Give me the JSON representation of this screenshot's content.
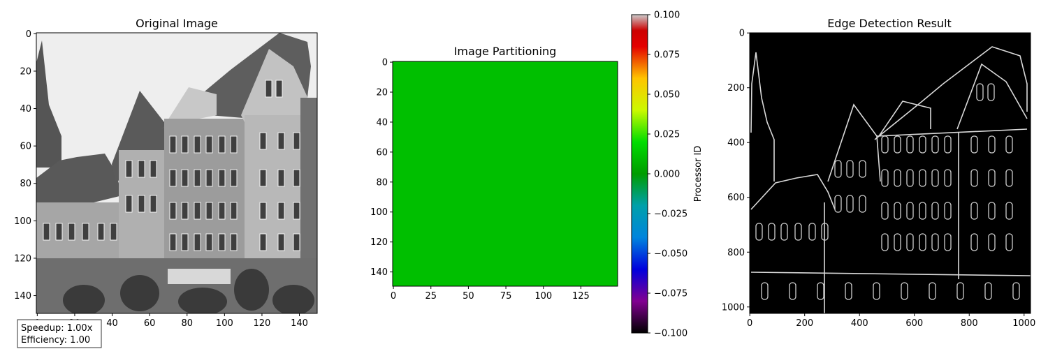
{
  "chart_data": [
    {
      "type": "image",
      "title": "Original Image",
      "content": "grayscale photograph of a street of half-timbered European townhouses with a church spire on the left",
      "xlim": [
        0,
        150
      ],
      "ylim": [
        150,
        0
      ],
      "x_ticks": [
        0,
        20,
        40,
        60,
        80,
        100,
        120,
        140
      ],
      "x_tick_labels": [
        "0",
        "20",
        "40",
        "60",
        "80",
        "100",
        "120",
        "140"
      ],
      "y_ticks": [
        0,
        20,
        40,
        60,
        80,
        100,
        120,
        140
      ],
      "y_tick_labels": [
        "0",
        "20",
        "40",
        "60",
        "80",
        "100",
        "120",
        "140"
      ]
    },
    {
      "type": "heatmap",
      "title": "Image Partitioning",
      "fill_value": 0.0,
      "fill_color": "#00bf00",
      "xlim": [
        0,
        150
      ],
      "ylim": [
        150,
        0
      ],
      "x_ticks": [
        0,
        25,
        50,
        75,
        100,
        125
      ],
      "x_tick_labels": [
        "0",
        "25",
        "50",
        "75",
        "100",
        "125"
      ],
      "y_ticks": [
        0,
        20,
        40,
        60,
        80,
        100,
        120,
        140
      ],
      "y_tick_labels": [
        "0",
        "20",
        "40",
        "60",
        "80",
        "100",
        "120",
        "140"
      ],
      "colorbar": {
        "label": "Processor ID",
        "range": [
          -0.1,
          0.1
        ],
        "ticks": [
          0.1,
          0.075,
          0.05,
          0.025,
          0.0,
          -0.025,
          -0.05,
          -0.075,
          -0.1
        ],
        "tick_labels": [
          "0.100",
          "0.075",
          "0.050",
          "0.025",
          "0.000",
          "−0.025",
          "−0.050",
          "−0.075",
          "−0.100"
        ],
        "colormap": "nipy_spectral",
        "stops": [
          {
            "value": 0.0,
            "color": "#000000"
          },
          {
            "value": 0.1,
            "color": "#820091"
          },
          {
            "value": 0.2,
            "color": "#0000dd"
          },
          {
            "value": 0.3,
            "color": "#0085dd"
          },
          {
            "value": 0.4,
            "color": "#00a0aa"
          },
          {
            "value": 0.5,
            "color": "#009c00"
          },
          {
            "value": 0.6,
            "color": "#00dd00"
          },
          {
            "value": 0.7,
            "color": "#ccf900"
          },
          {
            "value": 0.8,
            "color": "#ffc400"
          },
          {
            "value": 0.9,
            "color": "#e40000"
          },
          {
            "value": 0.95,
            "color": "#cc0000"
          },
          {
            "value": 1.0,
            "color": "#cccccc"
          }
        ]
      }
    },
    {
      "type": "image",
      "title": "Edge Detection Result",
      "content": "edge magnitude map of the street scene: white outlines of roofs, windows and facades on a black background",
      "xlim": [
        0,
        1024
      ],
      "ylim": [
        1024,
        0
      ],
      "x_ticks": [
        0,
        200,
        400,
        600,
        800,
        1000
      ],
      "x_tick_labels": [
        "0",
        "200",
        "400",
        "600",
        "800",
        "1000"
      ],
      "y_ticks": [
        0,
        200,
        400,
        600,
        800,
        1000
      ],
      "y_tick_labels": [
        "0",
        "200",
        "400",
        "600",
        "800",
        "1000"
      ]
    }
  ],
  "stats": {
    "speedup": "Speedup: 1.00x",
    "efficiency": "Efficiency: 1.00"
  }
}
